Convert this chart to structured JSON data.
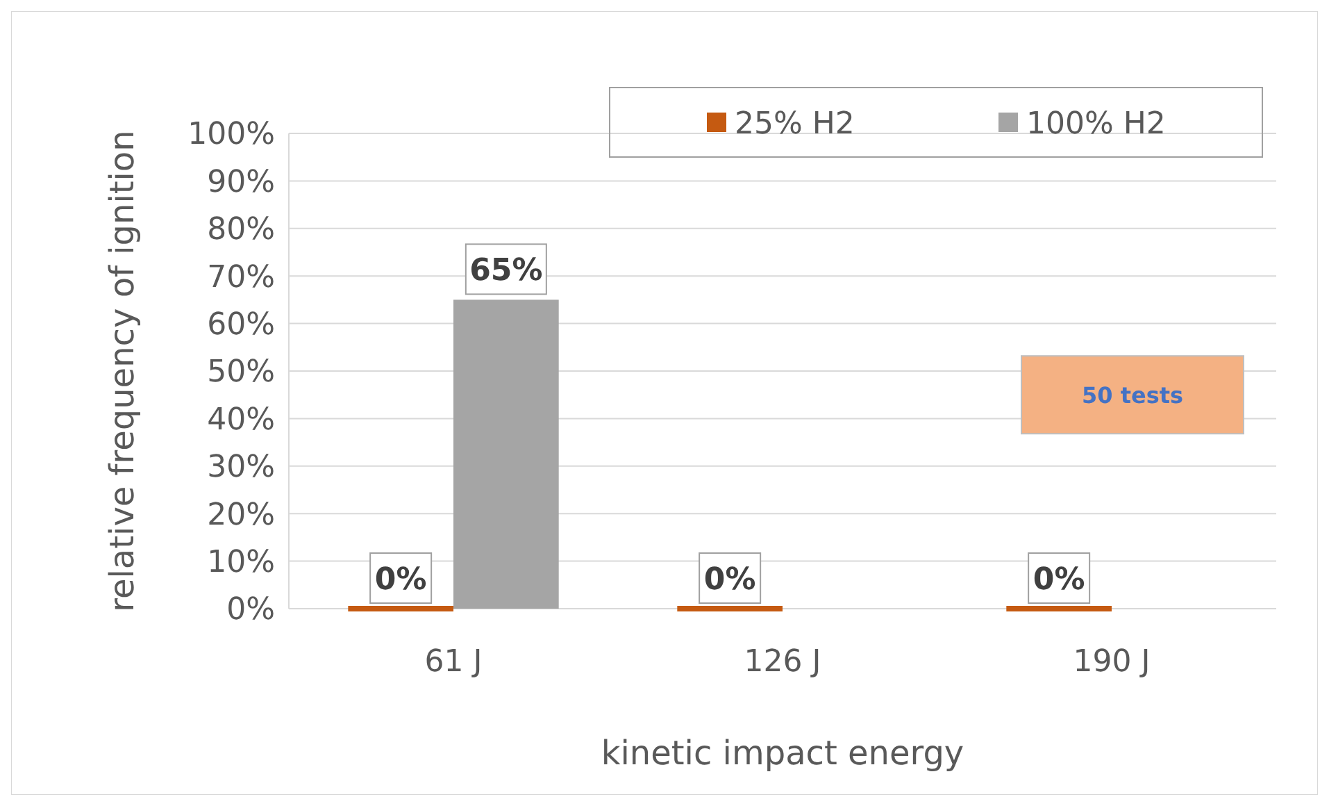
{
  "chart_data": {
    "type": "bar",
    "xlabel": "kinetic impact energy",
    "ylabel": "relative frequency of ignition",
    "categories": [
      "61 J",
      "126 J",
      "190 J"
    ],
    "series": [
      {
        "name": "25% H2",
        "color": "#c55a11",
        "values": [
          0,
          0,
          0
        ],
        "value_labels": [
          "0%",
          "0%",
          "0%"
        ]
      },
      {
        "name": "100% H2",
        "color": "#a5a5a5",
        "values": [
          65,
          null,
          null
        ],
        "value_labels": [
          "65%",
          null,
          null
        ]
      }
    ],
    "ylim": [
      0,
      100
    ],
    "yticks": [
      {
        "value": 0,
        "label": "0%"
      },
      {
        "value": 10,
        "label": "10%"
      },
      {
        "value": 20,
        "label": "20%"
      },
      {
        "value": 30,
        "label": "30%"
      },
      {
        "value": 40,
        "label": "40%"
      },
      {
        "value": 50,
        "label": "50%"
      },
      {
        "value": 60,
        "label": "60%"
      },
      {
        "value": 70,
        "label": "70%"
      },
      {
        "value": 80,
        "label": "80%"
      },
      {
        "value": 90,
        "label": "90%"
      },
      {
        "value": 100,
        "label": "100%"
      }
    ],
    "grid": "y",
    "legend": "top right",
    "annotations": [
      "50 tests"
    ]
  }
}
